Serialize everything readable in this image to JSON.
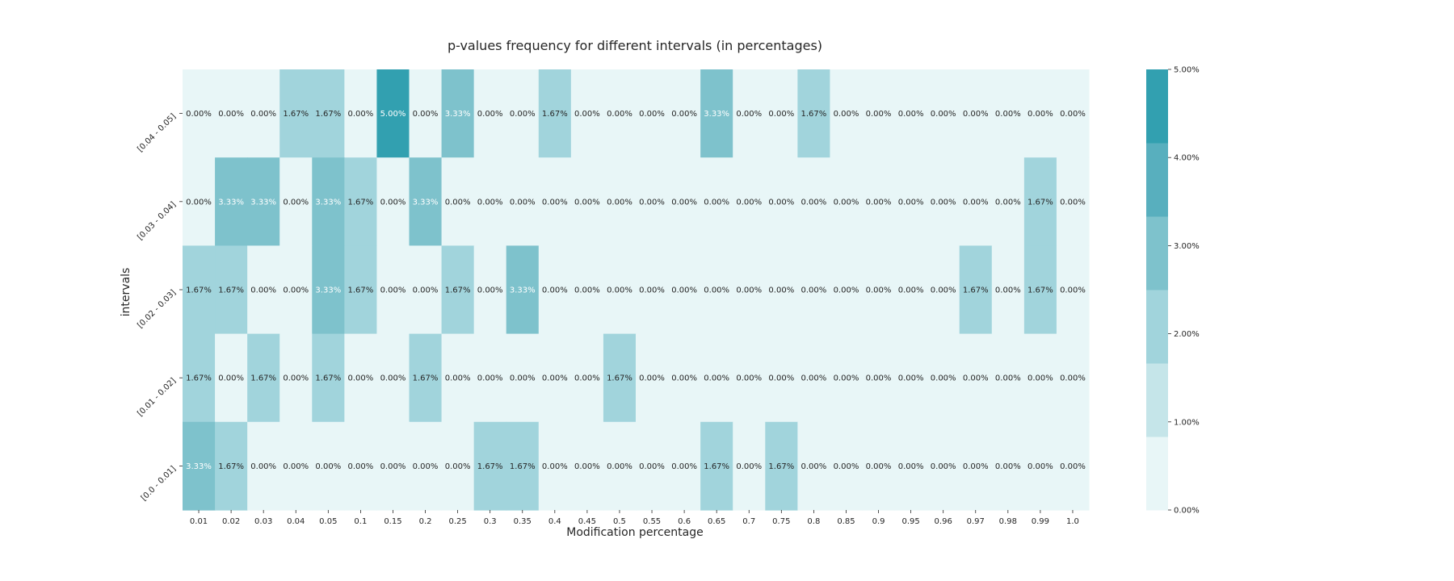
{
  "chart_data": {
    "type": "heatmap",
    "title": "p-values frequency for different intervals (in percentages)",
    "xlabel": "Modification percentage",
    "ylabel": "intervals",
    "x": [
      "0.01",
      "0.02",
      "0.03",
      "0.04",
      "0.05",
      "0.1",
      "0.15",
      "0.2",
      "0.25",
      "0.3",
      "0.35",
      "0.4",
      "0.45",
      "0.5",
      "0.55",
      "0.6",
      "0.65",
      "0.7",
      "0.75",
      "0.8",
      "0.85",
      "0.9",
      "0.95",
      "0.96",
      "0.97",
      "0.98",
      "0.99",
      "1.0"
    ],
    "y": [
      "[0.04 - 0.05]",
      "[0.03 - 0.04]",
      "[0.02 - 0.03]",
      "[0.01 - 0.02]",
      "[0.0 - 0.01]"
    ],
    "values": [
      [
        0,
        0,
        0,
        1.67,
        1.67,
        0,
        5,
        0,
        3.33,
        0,
        0,
        1.67,
        0,
        0,
        0,
        0,
        3.33,
        0,
        0,
        1.67,
        0,
        0,
        0,
        0,
        0,
        0,
        0,
        0
      ],
      [
        0,
        3.33,
        3.33,
        0,
        3.33,
        1.67,
        0,
        3.33,
        0,
        0,
        0,
        0,
        0,
        0,
        0,
        0,
        0,
        0,
        0,
        0,
        0,
        0,
        0,
        0,
        0,
        0,
        1.67,
        0
      ],
      [
        1.67,
        1.67,
        0,
        0,
        3.33,
        1.67,
        0,
        0,
        1.67,
        0,
        3.33,
        0,
        0,
        0,
        0,
        0,
        0,
        0,
        0,
        0,
        0,
        0,
        0,
        0,
        1.67,
        0,
        1.67,
        0
      ],
      [
        1.67,
        0,
        1.67,
        0,
        1.67,
        0,
        0,
        1.67,
        0,
        0,
        0,
        0,
        0,
        1.67,
        0,
        0,
        0,
        0,
        0,
        0,
        0,
        0,
        0,
        0,
        0,
        0,
        0,
        0
      ],
      [
        3.33,
        1.67,
        0,
        0,
        0,
        0,
        0,
        0,
        0,
        1.67,
        1.67,
        0,
        0,
        0,
        0,
        0,
        1.67,
        0,
        1.67,
        0,
        0,
        0,
        0,
        0,
        0,
        0,
        0,
        0
      ]
    ],
    "value_format": "percent_2dp",
    "colorbar": {
      "ticks": [
        "0.00%",
        "1.00%",
        "2.00%",
        "3.00%",
        "4.00%",
        "5.00%"
      ],
      "range": [
        0,
        5
      ],
      "colors": [
        "#e8f6f7",
        "#c5e5e9",
        "#a1d4dc",
        "#7ec2cc",
        "#58afbe",
        "#32a0b0"
      ]
    },
    "text_color_dark": "#262626",
    "text_color_light": "#ffffff"
  }
}
